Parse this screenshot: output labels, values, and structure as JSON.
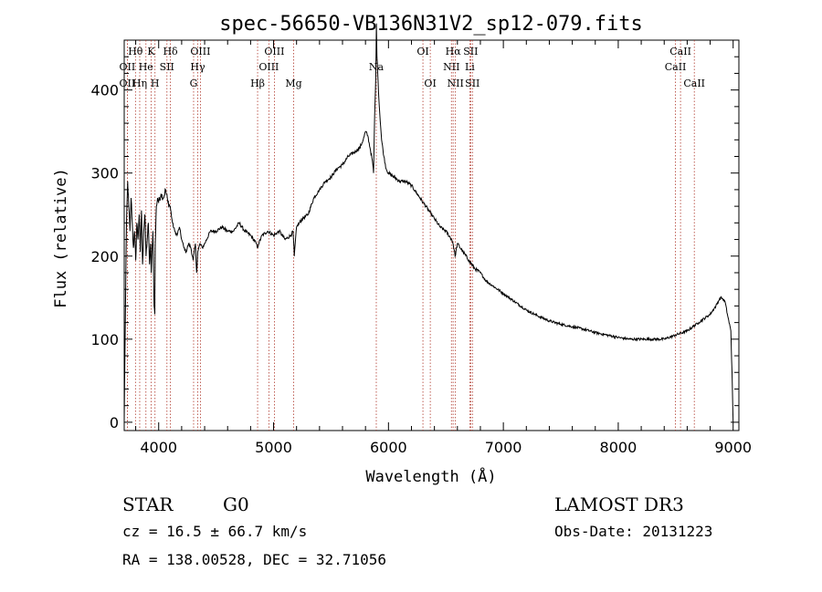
{
  "chart_data": {
    "type": "line",
    "title": "spec-56650-VB136N31V2_sp12-079.fits",
    "xlabel": "Wavelength (Å)",
    "ylabel": "Flux (relative)",
    "xlim": [
      3700,
      9050
    ],
    "ylim": [
      -10,
      460
    ],
    "xticks": [
      4000,
      5000,
      6000,
      7000,
      8000,
      9000
    ],
    "yticks": [
      0,
      100,
      200,
      300,
      400
    ],
    "xtick_labels": [
      "4000",
      "5000",
      "6000",
      "7000",
      "8000",
      "9000"
    ],
    "ytick_labels": [
      "0",
      "100",
      "200",
      "300",
      "400"
    ],
    "series": [
      {
        "name": "spectrum",
        "x": [
          3700,
          3710,
          3720,
          3730,
          3740,
          3750,
          3760,
          3770,
          3780,
          3790,
          3800,
          3810,
          3820,
          3830,
          3840,
          3850,
          3860,
          3870,
          3880,
          3890,
          3900,
          3910,
          3920,
          3930,
          3935,
          3940,
          3950,
          3960,
          3966,
          3970,
          3980,
          3990,
          4000,
          4020,
          4040,
          4060,
          4080,
          4100,
          4120,
          4140,
          4160,
          4180,
          4200,
          4220,
          4240,
          4260,
          4280,
          4300,
          4320,
          4330,
          4340,
          4360,
          4380,
          4400,
          4450,
          4500,
          4550,
          4600,
          4650,
          4700,
          4750,
          4800,
          4850,
          4861,
          4870,
          4900,
          4950,
          5000,
          5050,
          5100,
          5150,
          5170,
          5180,
          5200,
          5250,
          5300,
          5350,
          5400,
          5450,
          5500,
          5550,
          5600,
          5650,
          5700,
          5750,
          5780,
          5800,
          5820,
          5840,
          5860,
          5870,
          5880,
          5890,
          5895,
          5900,
          5910,
          5920,
          5940,
          5960,
          5980,
          6000,
          6050,
          6100,
          6150,
          6200,
          6250,
          6300,
          6350,
          6400,
          6450,
          6500,
          6550,
          6563,
          6580,
          6600,
          6650,
          6700,
          6750,
          6800,
          6850,
          6900,
          6950,
          7000,
          7100,
          7200,
          7300,
          7400,
          7500,
          7600,
          7700,
          7800,
          7900,
          8000,
          8100,
          8200,
          8300,
          8400,
          8500,
          8600,
          8700,
          8800,
          8850,
          8880,
          8900,
          8930,
          8950,
          8980,
          8990,
          9000
        ],
        "y": [
          0,
          130,
          240,
          290,
          260,
          230,
          270,
          240,
          210,
          230,
          195,
          240,
          220,
          250,
          205,
          255,
          190,
          230,
          250,
          200,
          220,
          240,
          190,
          215,
          180,
          200,
          230,
          140,
          130,
          215,
          260,
          270,
          265,
          275,
          270,
          280,
          265,
          260,
          240,
          230,
          225,
          235,
          220,
          210,
          205,
          215,
          210,
          195,
          215,
          180,
          205,
          215,
          210,
          215,
          230,
          230,
          235,
          230,
          230,
          240,
          230,
          225,
          215,
          210,
          215,
          225,
          230,
          225,
          230,
          220,
          225,
          230,
          200,
          235,
          245,
          250,
          270,
          280,
          290,
          295,
          305,
          310,
          320,
          325,
          330,
          340,
          350,
          345,
          330,
          315,
          300,
          370,
          420,
          480,
          440,
          410,
          380,
          340,
          320,
          305,
          300,
          295,
          290,
          290,
          285,
          275,
          265,
          255,
          245,
          235,
          230,
          220,
          215,
          200,
          215,
          205,
          195,
          185,
          180,
          170,
          165,
          160,
          155,
          145,
          135,
          128,
          122,
          118,
          115,
          112,
          108,
          105,
          102,
          100,
          100,
          100,
          100,
          105,
          110,
          120,
          130,
          140,
          148,
          150,
          145,
          130,
          110,
          60,
          0
        ]
      }
    ],
    "line_markers": [
      {
        "label": "Hθ",
        "x": 3798,
        "row": 0
      },
      {
        "label": "OII",
        "x": 3727,
        "row": 1
      },
      {
        "label": "OII",
        "x": 3727,
        "row": 2
      },
      {
        "label": "He",
        "x": 3889,
        "row": 1
      },
      {
        "label": "Hη",
        "x": 3835,
        "row": 2
      },
      {
        "label": "K",
        "x": 3934,
        "row": 0
      },
      {
        "label": "H",
        "x": 3968,
        "row": 2
      },
      {
        "label": "SII",
        "x": 4072,
        "row": 1
      },
      {
        "label": "Hδ",
        "x": 4102,
        "row": 0
      },
      {
        "label": "OIII",
        "x": 4363,
        "row": 0
      },
      {
        "label": "Hγ",
        "x": 4340,
        "row": 1
      },
      {
        "label": "G",
        "x": 4304,
        "row": 2
      },
      {
        "label": "Hβ",
        "x": 4861,
        "row": 2
      },
      {
        "label": "OIII",
        "x": 5007,
        "row": 0
      },
      {
        "label": "OIII",
        "x": 4959,
        "row": 1
      },
      {
        "label": "Mg",
        "x": 5175,
        "row": 2
      },
      {
        "label": "Na",
        "x": 5894,
        "row": 1
      },
      {
        "label": "OI",
        "x": 6300,
        "row": 0
      },
      {
        "label": "OI",
        "x": 6364,
        "row": 2
      },
      {
        "label": "Hα",
        "x": 6563,
        "row": 0
      },
      {
        "label": "NII",
        "x": 6548,
        "row": 1
      },
      {
        "label": "NII",
        "x": 6583,
        "row": 2
      },
      {
        "label": "SII",
        "x": 6716,
        "row": 0
      },
      {
        "label": "Li",
        "x": 6708,
        "row": 1
      },
      {
        "label": "SII",
        "x": 6731,
        "row": 2
      },
      {
        "label": "CaII",
        "x": 8542,
        "row": 0
      },
      {
        "label": "CaII",
        "x": 8498,
        "row": 1
      },
      {
        "label": "CaII",
        "x": 8662,
        "row": 2
      }
    ]
  },
  "footer": {
    "class": "STAR",
    "subclass": "G0",
    "survey": "LAMOST DR3",
    "cz": "cz = 16.5 ± 66.7 km/s",
    "obs_date": "Obs-Date: 20131223",
    "coords": "RA = 138.00528, DEC =  32.71056"
  }
}
